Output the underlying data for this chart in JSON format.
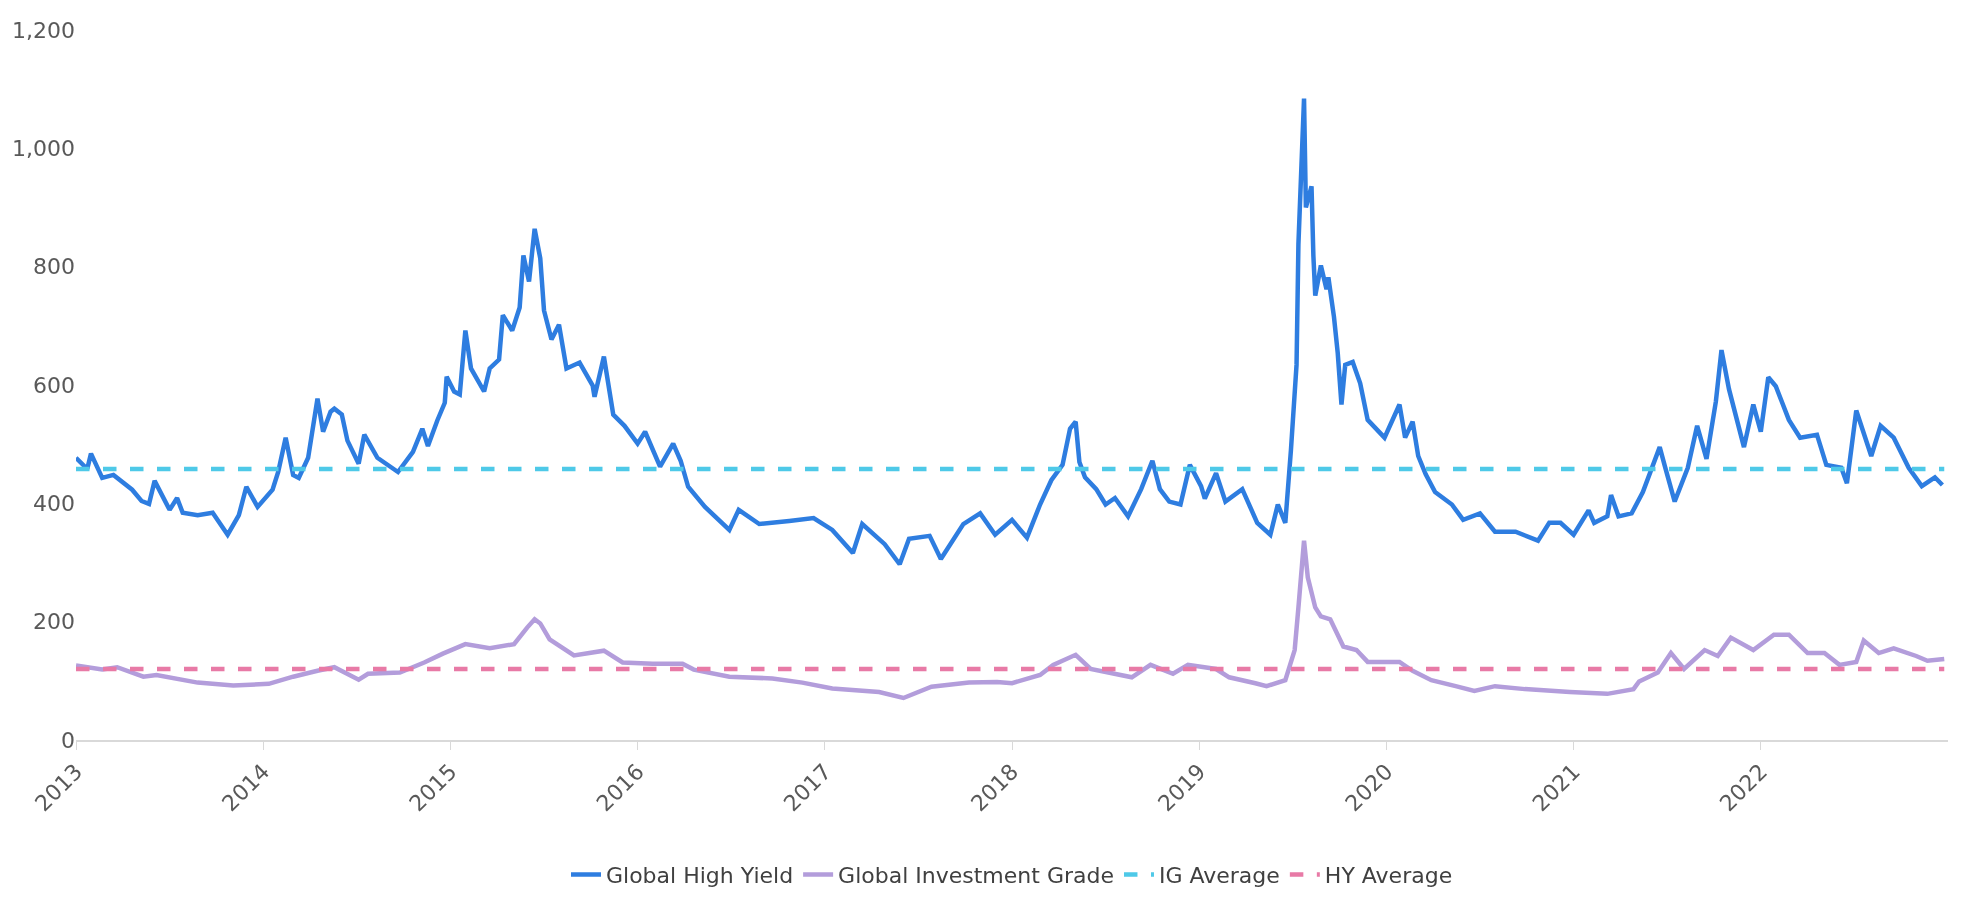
{
  "chart_data": {
    "type": "line",
    "xlim": [
      2013,
      2023
    ],
    "xticks": [
      2013,
      2014,
      2015,
      2016,
      2017,
      2018,
      2019,
      2020,
      2021,
      2022
    ],
    "ylim": [
      0,
      1200
    ],
    "yticks": [
      0,
      200,
      400,
      600,
      800,
      {
        "value": 1000,
        "label": "1,000"
      },
      {
        "value": 1200,
        "label": "1,200"
      }
    ],
    "grid": false,
    "legend": "bottom",
    "marker": "none",
    "series": [
      {
        "name": "Global High Yield",
        "color": "#2e7de0",
        "line_style": "solid",
        "x": [
          2013.0,
          2013.06,
          2013.08,
          2013.14,
          2013.2,
          2013.3,
          2013.35,
          2013.39,
          2013.42,
          2013.5,
          2013.54,
          2013.57,
          2013.65,
          2013.73,
          2013.81,
          2013.87,
          2013.91,
          2013.97,
          2014.05,
          2014.08,
          2014.12,
          2014.16,
          2014.19,
          2014.24,
          2014.29,
          2014.32,
          2014.36,
          2014.38,
          2014.42,
          2014.45,
          2014.51,
          2014.54,
          2014.61,
          2014.72,
          2014.8,
          2014.85,
          2014.88,
          2014.93,
          2014.97,
          2014.98,
          2015.02,
          2015.05,
          2015.08,
          2015.11,
          2015.18,
          2015.21,
          2015.26,
          2015.28,
          2015.33,
          2015.37,
          2015.39,
          2015.42,
          2015.45,
          2015.48,
          2015.5,
          2015.54,
          2015.58,
          2015.62,
          2015.69,
          2015.76,
          2015.77,
          2015.82,
          2015.87,
          2015.93,
          2016.0,
          2016.04,
          2016.12,
          2016.19,
          2016.23,
          2016.27,
          2016.36,
          2016.49,
          2016.54,
          2016.65,
          2016.81,
          2016.94,
          2017.04,
          2017.15,
          2017.2,
          2017.32,
          2017.4,
          2017.45,
          2017.56,
          2017.62,
          2017.74,
          2017.83,
          2017.91,
          2018.0,
          2018.08,
          2018.15,
          2018.21,
          2018.27,
          2018.31,
          2018.34,
          2018.36,
          2018.39,
          2018.45,
          2018.5,
          2018.55,
          2018.62,
          2018.69,
          2018.75,
          2018.79,
          2018.84,
          2018.9,
          2018.95,
          2019.01,
          2019.03,
          2019.09,
          2019.14,
          2019.23,
          2019.31,
          2019.38,
          2019.42,
          2019.46,
          2019.49,
          2019.52,
          2019.53,
          2019.56,
          2019.57,
          2019.6,
          2019.61,
          2019.62,
          2019.65,
          2019.68,
          2019.69,
          2019.72,
          2019.74,
          2019.76,
          2019.78,
          2019.82,
          2019.86,
          2019.9,
          2019.99,
          2020.07,
          2020.1,
          2020.14,
          2020.17,
          2020.21,
          2020.26,
          2020.35,
          2020.41,
          2020.5,
          2020.58,
          2020.69,
          2020.81,
          2020.87,
          2020.93,
          2021.0,
          2021.08,
          2021.11,
          2021.18,
          2021.2,
          2021.24,
          2021.31,
          2021.37,
          2021.46,
          2021.49,
          2021.54,
          2021.61,
          2021.66,
          2021.71,
          2021.76,
          2021.79,
          2021.83,
          2021.91,
          2021.96,
          2022.0,
          2022.04,
          2022.08,
          2022.15,
          2022.21,
          2022.3,
          2022.35,
          2022.43,
          2022.46,
          2022.51,
          2022.59,
          2022.64,
          2022.71,
          2022.79,
          2022.86,
          2022.93,
          2022.97
        ],
        "values": [
          477,
          458,
          484,
          443,
          448,
          423,
          404,
          399,
          438,
          389,
          409,
          384,
          380,
          384,
          347,
          380,
          428,
          394,
          423,
          453,
          511,
          448,
          443,
          477,
          577,
          521,
          555,
          560,
          550,
          506,
          467,
          516,
          477,
          453,
          487,
          526,
          497,
          540,
          570,
          614,
          589,
          584,
          692,
          628,
          589,
          628,
          643,
          718,
          692,
          731,
          819,
          775,
          864,
          814,
          726,
          677,
          702,
          628,
          638,
          599,
          580,
          648,
          550,
          531,
          501,
          521,
          462,
          501,
          472,
          428,
          394,
          355,
          389,
          365,
          370,
          375,
          355,
          316,
          365,
          331,
          297,
          340,
          345,
          306,
          365,
          383,
          347,
          372,
          342,
          398,
          439,
          465,
          526,
          538,
          470,
          444,
          424,
          398,
          409,
          378,
          424,
          472,
          424,
          403,
          398,
          465,
          429,
          408,
          451,
          403,
          424,
          367,
          347,
          398,
          367,
          490,
          634,
          838,
          1084,
          900,
          936,
          818,
          751,
          802,
          762,
          782,
          715,
          654,
          567,
          634,
          639,
          603,
          541,
          511,
          567,
          511,
          538,
          480,
          449,
          419,
          398,
          372,
          383,
          352,
          352,
          337,
          367,
          367,
          347,
          388,
          367,
          378,
          414,
          378,
          383,
          419,
          495,
          460,
          403,
          460,
          531,
          475,
          572,
          659,
          593,
          495,
          567,
          521,
          613,
          598,
          541,
          511,
          516,
          465,
          460,
          434,
          557,
          480,
          531,
          511,
          460,
          429,
          444,
          431
        ]
      },
      {
        "name": "Global Investment Grade",
        "color": "#b39ddb",
        "line_style": "solid",
        "x": [
          2013.0,
          2013.14,
          2013.22,
          2013.36,
          2013.43,
          2013.65,
          2013.84,
          2014.03,
          2014.16,
          2014.29,
          2014.38,
          2014.51,
          2014.56,
          2014.73,
          2014.86,
          2014.96,
          2015.08,
          2015.21,
          2015.34,
          2015.41,
          2015.45,
          2015.48,
          2015.53,
          2015.66,
          2015.82,
          2015.92,
          2016.08,
          2016.24,
          2016.3,
          2016.49,
          2016.72,
          2016.88,
          2017.04,
          2017.29,
          2017.42,
          2017.57,
          2017.77,
          2017.92,
          2018.0,
          2018.15,
          2018.22,
          2018.34,
          2018.42,
          2018.64,
          2018.74,
          2018.86,
          2018.94,
          2019.09,
          2019.16,
          2019.3,
          2019.36,
          2019.46,
          2019.51,
          2019.53,
          2019.56,
          2019.58,
          2019.62,
          2019.65,
          2019.7,
          2019.77,
          2019.84,
          2019.9,
          2020.07,
          2020.14,
          2020.24,
          2020.37,
          2020.47,
          2020.58,
          2020.74,
          2020.98,
          2021.18,
          2021.32,
          2021.35,
          2021.45,
          2021.52,
          2021.59,
          2021.7,
          2021.77,
          2021.84,
          2021.96,
          2022.07,
          2022.15,
          2022.25,
          2022.34,
          2022.42,
          2022.51,
          2022.55,
          2022.63,
          2022.71,
          2022.83,
          2022.89,
          2022.98
        ],
        "values": [
          126,
          119,
          123,
          107,
          110,
          97,
          92,
          95,
          107,
          117,
          123,
          102,
          112,
          114,
          131,
          146,
          162,
          155,
          162,
          190,
          204,
          197,
          170,
          143,
          151,
          131,
          129,
          129,
          119,
          107,
          104,
          97,
          87,
          81,
          71,
          90,
          97,
          98,
          96,
          110,
          127,
          144,
          120,
          106,
          127,
          112,
          127,
          120,
          106,
          96,
          91,
          101,
          152,
          224,
          337,
          275,
          224,
          209,
          204,
          158,
          152,
          132,
          132,
          117,
          101,
          91,
          83,
          91,
          86,
          81,
          78,
          86,
          99,
          114,
          147,
          120,
          152,
          142,
          173,
          152,
          178,
          178,
          147,
          147,
          127,
          132,
          168,
          147,
          155,
          142,
          134,
          137
        ]
      },
      {
        "name": "IG Average",
        "color": "#4ec9e8",
        "line_style": "dashed",
        "x": [
          2013,
          2022.98
        ],
        "values": [
          458,
          458
        ]
      },
      {
        "name": "HY Average",
        "color": "#e87aa6",
        "line_style": "dashed",
        "x": [
          2013,
          2022.98
        ],
        "values": [
          120,
          120
        ]
      }
    ]
  }
}
